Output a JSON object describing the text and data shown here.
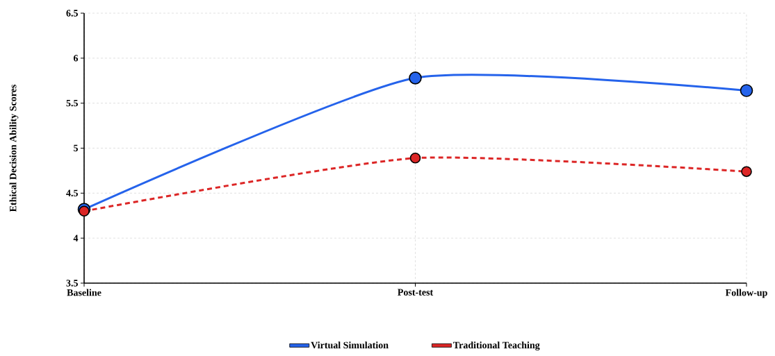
{
  "chart_data": {
    "type": "line",
    "ylabel": "Ethical Decision Ability Scores",
    "categories": [
      "Baseline",
      "Post-test",
      "Follow-up"
    ],
    "series": [
      {
        "name": "Virtual Simulation",
        "color": "#2563eb",
        "values": [
          4.32,
          5.78,
          5.64
        ],
        "line_style": "solid"
      },
      {
        "name": "Traditional Teaching",
        "color": "#dc2626",
        "values": [
          4.3,
          4.89,
          4.74
        ],
        "line_style": "dashed"
      }
    ],
    "ylim": [
      3.5,
      6.5
    ],
    "yticks": [
      3.5,
      4,
      4.5,
      5,
      5.5,
      6,
      6.5
    ],
    "grid": true,
    "legend": "bottom",
    "marker": "circle"
  }
}
